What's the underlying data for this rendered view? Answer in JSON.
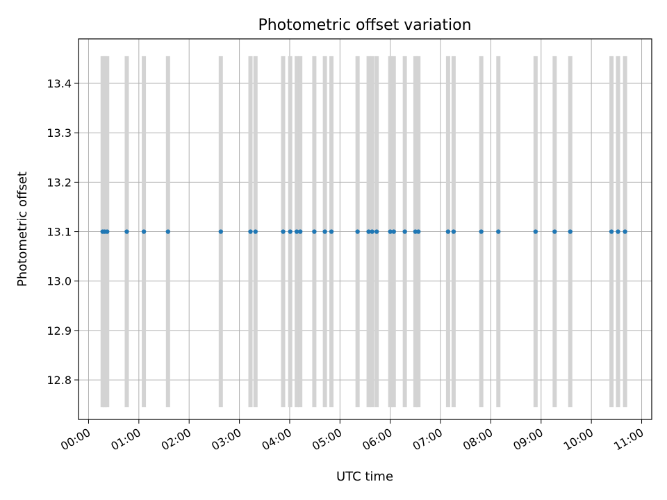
{
  "chart_data": {
    "type": "scatter",
    "title": "Photometric offset variation",
    "xlabel": "UTC time",
    "ylabel": "Photometric offset",
    "x_ticks": [
      "00:00",
      "01:00",
      "02:00",
      "03:00",
      "04:00",
      "05:00",
      "06:00",
      "07:00",
      "08:00",
      "09:00",
      "10:00",
      "11:00"
    ],
    "y_ticks": [
      "12.8",
      "12.9",
      "13.0",
      "13.1",
      "13.2",
      "13.3",
      "13.4"
    ],
    "xlim_hours": [
      -0.2,
      11.2
    ],
    "ylim": [
      12.72,
      13.49
    ],
    "grid": true,
    "band_range": [
      12.745,
      13.455
    ],
    "point_color": "#1f77b4",
    "band_color": "#d3d3d3",
    "points": [
      {
        "t": 0.28,
        "y": 13.1
      },
      {
        "t": 0.32,
        "y": 13.1
      },
      {
        "t": 0.37,
        "y": 13.1
      },
      {
        "t": 0.76,
        "y": 13.1
      },
      {
        "t": 1.1,
        "y": 13.1
      },
      {
        "t": 1.58,
        "y": 13.1
      },
      {
        "t": 2.63,
        "y": 13.1
      },
      {
        "t": 3.22,
        "y": 13.1
      },
      {
        "t": 3.32,
        "y": 13.1
      },
      {
        "t": 3.87,
        "y": 13.1
      },
      {
        "t": 4.01,
        "y": 13.1
      },
      {
        "t": 4.14,
        "y": 13.1
      },
      {
        "t": 4.21,
        "y": 13.1
      },
      {
        "t": 4.49,
        "y": 13.1
      },
      {
        "t": 4.7,
        "y": 13.1
      },
      {
        "t": 4.83,
        "y": 13.1
      },
      {
        "t": 5.35,
        "y": 13.1
      },
      {
        "t": 5.57,
        "y": 13.1
      },
      {
        "t": 5.64,
        "y": 13.1
      },
      {
        "t": 5.73,
        "y": 13.1
      },
      {
        "t": 6.0,
        "y": 13.1
      },
      {
        "t": 6.07,
        "y": 13.1
      },
      {
        "t": 6.29,
        "y": 13.1
      },
      {
        "t": 6.5,
        "y": 13.1
      },
      {
        "t": 6.56,
        "y": 13.1
      },
      {
        "t": 7.15,
        "y": 13.1
      },
      {
        "t": 7.26,
        "y": 13.1
      },
      {
        "t": 7.81,
        "y": 13.1
      },
      {
        "t": 8.15,
        "y": 13.1
      },
      {
        "t": 8.89,
        "y": 13.1
      },
      {
        "t": 9.27,
        "y": 13.1
      },
      {
        "t": 9.58,
        "y": 13.1
      },
      {
        "t": 10.4,
        "y": 13.1
      },
      {
        "t": 10.53,
        "y": 13.1
      },
      {
        "t": 10.67,
        "y": 13.1
      }
    ]
  }
}
